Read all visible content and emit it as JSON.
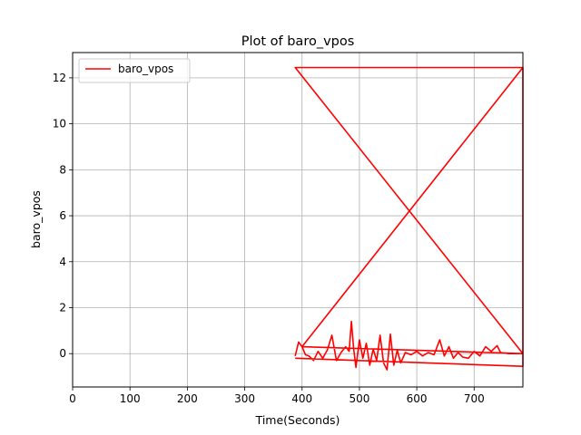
{
  "chart_data": {
    "type": "line",
    "title": "Plot of baro_vpos",
    "xlabel": "Time(Seconds)",
    "ylabel": "baro_vpos",
    "xlim": [
      0,
      785
    ],
    "ylim": [
      -1.45,
      13.1
    ],
    "xticks": [
      0,
      100,
      200,
      300,
      400,
      500,
      600,
      700
    ],
    "yticks": [
      0,
      2,
      4,
      6,
      8,
      10,
      12
    ],
    "grid": true,
    "legend_position": "upper-left",
    "series": [
      {
        "name": "baro_vpos",
        "color": "#ff0000",
        "x": [
          388,
          394,
          400,
          406,
          412,
          420,
          428,
          436,
          444,
          452,
          460,
          468,
          476,
          482,
          486,
          490,
          494,
          500,
          506,
          512,
          518,
          524,
          530,
          536,
          542,
          548,
          554,
          560,
          566,
          572,
          580,
          590,
          600,
          610,
          620,
          630,
          640,
          648,
          656,
          664,
          672,
          680,
          690,
          700,
          710,
          720,
          730,
          740,
          746,
          760,
          785,
          388,
          785,
          388,
          785,
          785,
          400,
          785,
          785,
          388
        ],
        "values": [
          -0.1,
          0.5,
          0.3,
          -0.05,
          -0.1,
          -0.3,
          0.1,
          -0.2,
          0.15,
          0.8,
          -0.3,
          0.05,
          0.3,
          0.1,
          1.4,
          0.2,
          -0.6,
          0.6,
          -0.2,
          0.45,
          -0.5,
          0.2,
          -0.3,
          0.8,
          -0.4,
          -0.7,
          0.85,
          -0.5,
          0.15,
          -0.4,
          0.05,
          -0.05,
          0.1,
          -0.1,
          0.05,
          -0.05,
          0.6,
          -0.1,
          0.3,
          -0.2,
          0.05,
          -0.15,
          -0.2,
          0.1,
          -0.1,
          0.3,
          0.1,
          0.35,
          0.05,
          0.0,
          0.0,
          12.45,
          12.45,
          12.45,
          12.45,
          0.0,
          0.3,
          12.45,
          -0.55,
          -0.2
        ]
      }
    ]
  }
}
